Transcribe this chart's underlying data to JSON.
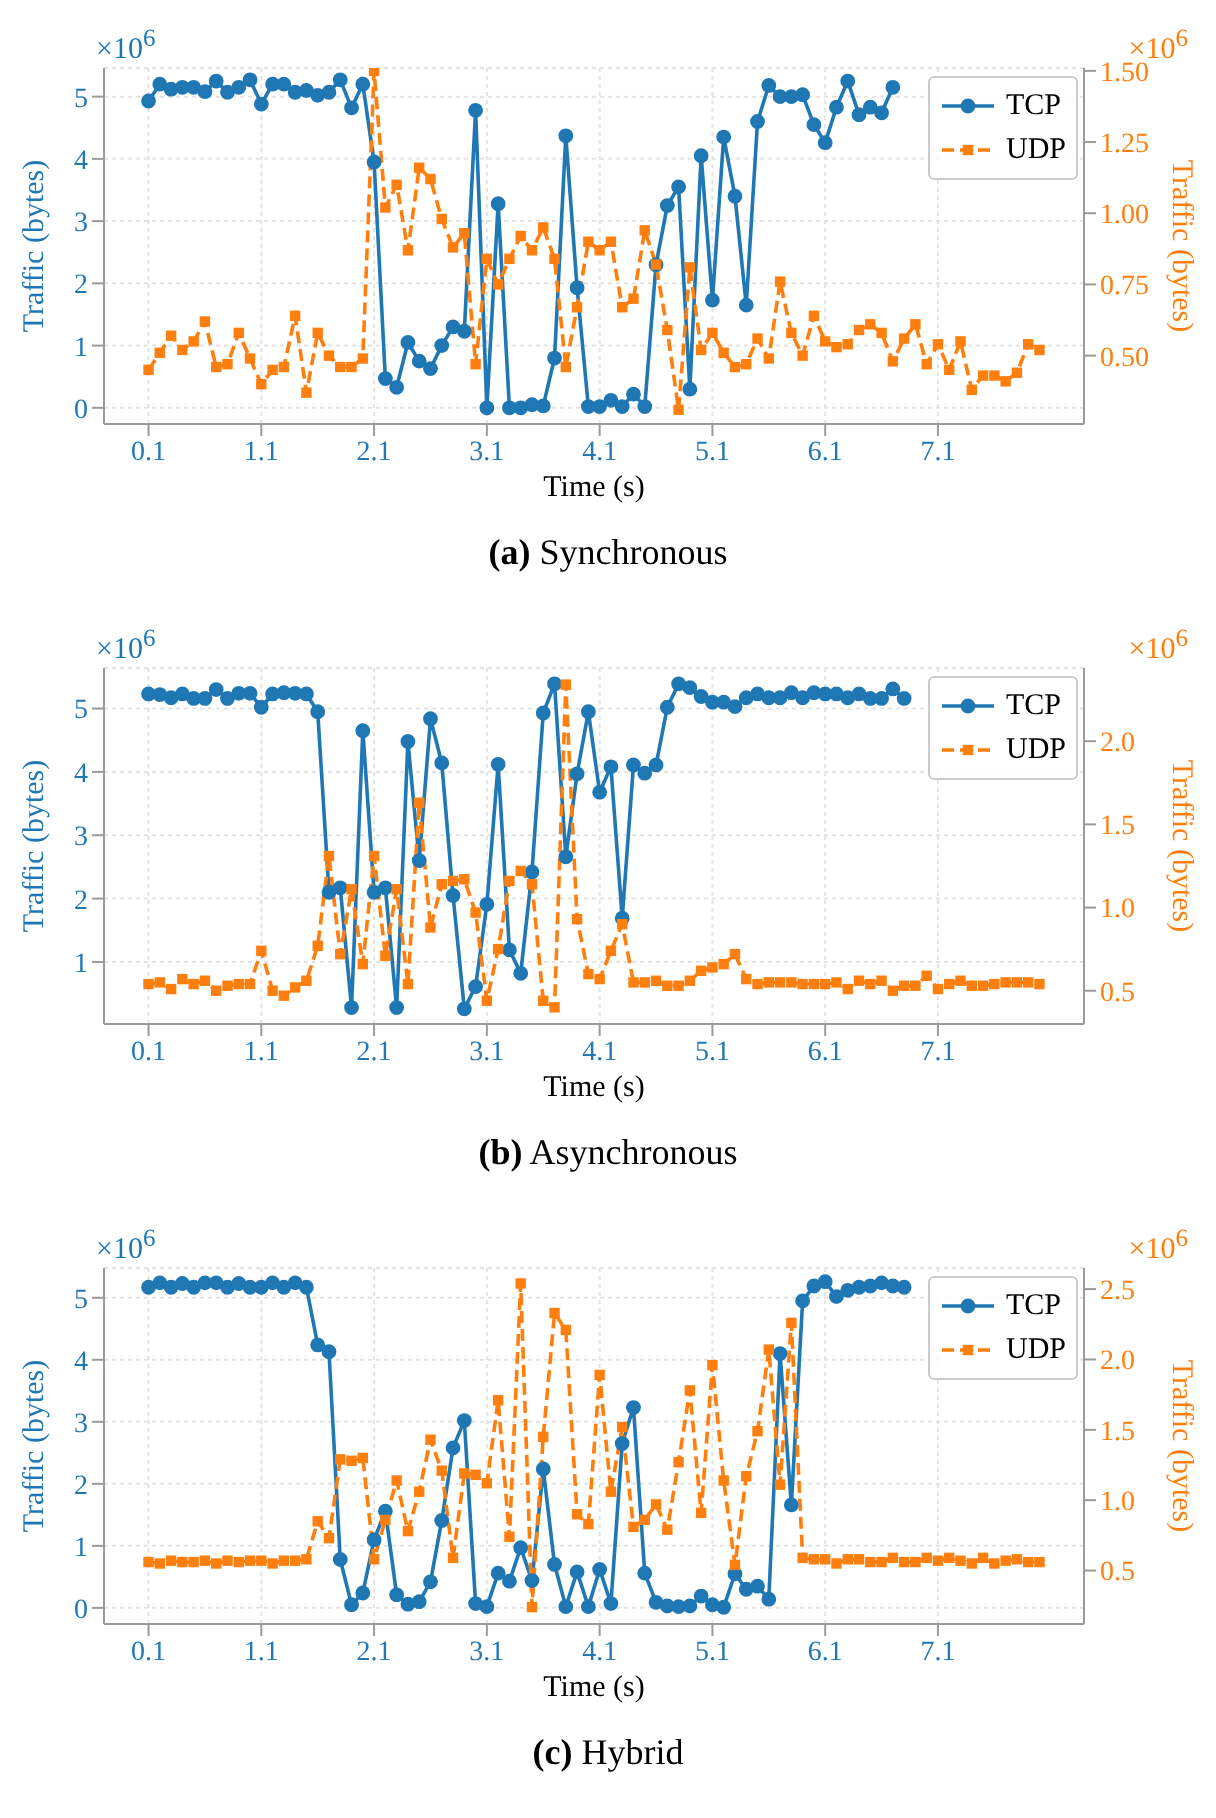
{
  "chart_data": [
    {
      "type": "line",
      "title": "(a) Synchronous",
      "xlabel": "Time (s)",
      "ylabel": "Traffic (bytes)",
      "y2label": "Traffic (bytes)",
      "annotations": [
        "×10$^{6}$",
        "×10$^{6}$"
      ],
      "grid": true,
      "legend": "top right",
      "x": [
        0.1,
        0.2,
        0.3,
        0.4,
        0.5,
        0.6,
        0.7,
        0.8,
        0.9,
        1.0,
        1.1,
        1.2,
        1.3,
        1.4,
        1.5,
        1.6,
        1.7,
        1.8,
        1.9,
        2.0,
        2.1,
        2.2,
        2.3,
        2.4,
        2.5,
        2.6,
        2.7,
        2.8,
        2.9,
        3.0,
        3.1,
        3.2,
        3.3,
        3.4,
        3.5,
        3.6,
        3.7,
        3.8,
        3.9,
        4.0,
        4.1,
        4.2,
        4.3,
        4.4,
        4.5,
        4.6,
        4.7,
        4.8,
        4.9,
        5.0,
        5.1,
        5.2,
        5.3,
        5.4,
        5.5,
        5.6,
        5.7,
        5.8,
        5.9,
        6.0,
        6.1,
        6.2,
        6.3,
        6.4,
        6.5,
        6.6,
        6.7,
        6.8,
        6.9,
        7.0,
        7.1,
        7.2,
        7.3,
        7.4,
        7.5,
        7.6,
        7.7,
        7.8,
        7.9,
        8.0
      ],
      "xlim": [
        -0.295,
        8.395
      ],
      "xticks": [
        0.1,
        1.1,
        2.1,
        3.1,
        4.1,
        5.1,
        6.1,
        7.1
      ],
      "ylim": [
        -0.26,
        5.46
      ],
      "yticks": [
        0,
        1,
        2,
        3,
        4,
        5
      ],
      "y2lim": [
        0.26,
        1.51
      ],
      "y2ticks": [
        {
          "value": 0.5,
          "label": "0.50"
        },
        {
          "value": 0.75,
          "label": "0.75"
        },
        {
          "value": 1.0,
          "label": "1.00"
        },
        {
          "value": 1.25,
          "label": "1.25"
        },
        {
          "value": 1.5,
          "label": "1.50"
        }
      ],
      "series": [
        {
          "name": "TCP",
          "color": "#1f77b4",
          "marker": "circle",
          "line_style": "solid",
          "values": [
            4.93,
            5.2,
            5.12,
            5.15,
            5.15,
            5.08,
            5.25,
            5.07,
            5.15,
            5.27,
            4.88,
            5.2,
            5.2,
            5.07,
            5.1,
            5.02,
            5.07,
            5.27,
            4.82,
            5.2,
            3.95,
            0.47,
            0.33,
            1.05,
            0.75,
            0.63,
            1.0,
            1.3,
            1.23,
            4.78,
            0.0,
            3.28,
            0.0,
            0.0,
            0.05,
            0.03,
            0.8,
            4.37,
            1.93,
            0.02,
            0.02,
            0.12,
            0.02,
            0.22,
            0.02,
            2.3,
            3.25,
            3.55,
            0.3,
            4.05,
            1.73,
            4.35,
            3.4,
            1.65,
            4.6,
            5.18,
            5.0,
            5.0,
            5.03,
            4.55,
            4.26,
            4.83,
            5.25,
            4.71,
            4.83,
            4.74,
            5.15,
            null,
            null,
            null,
            null,
            null,
            null,
            null,
            null,
            null,
            null,
            null,
            null,
            null
          ]
        },
        {
          "name": "UDP",
          "color": "#ff7f0e",
          "marker": "square",
          "line_style": "dashed",
          "axis": "y2",
          "values": [
            0.45,
            0.51,
            0.57,
            0.52,
            0.55,
            0.62,
            0.46,
            0.47,
            0.58,
            0.49,
            0.4,
            0.45,
            0.46,
            0.64,
            0.37,
            0.58,
            0.5,
            0.46,
            0.46,
            0.49,
            1.5,
            1.02,
            1.1,
            0.87,
            1.16,
            1.12,
            0.98,
            0.88,
            0.93,
            0.47,
            0.84,
            0.75,
            0.84,
            0.92,
            0.87,
            0.95,
            0.84,
            0.46,
            0.67,
            0.9,
            0.87,
            0.9,
            0.67,
            0.7,
            0.94,
            0.82,
            0.59,
            0.31,
            0.81,
            0.52,
            0.58,
            0.51,
            0.46,
            0.47,
            0.56,
            0.49,
            0.76,
            0.58,
            0.5,
            0.64,
            0.55,
            0.53,
            0.54,
            0.59,
            0.61,
            0.58,
            0.48,
            0.56,
            0.61,
            0.47,
            0.54,
            0.45,
            0.55,
            0.38,
            0.43,
            0.43,
            0.41,
            0.44,
            0.54,
            0.52
          ]
        }
      ]
    },
    {
      "type": "line",
      "title": "(b) Asynchronous",
      "xlabel": "Time (s)",
      "ylabel": "Traffic (bytes)",
      "y2label": "Traffic (bytes)",
      "annotations": [
        "×10$^{6}$",
        "×10$^{6}$"
      ],
      "grid": true,
      "legend": "top right",
      "x": [
        0.1,
        0.2,
        0.3,
        0.4,
        0.5,
        0.6,
        0.7,
        0.8,
        0.9,
        1.0,
        1.1,
        1.2,
        1.3,
        1.4,
        1.5,
        1.6,
        1.7,
        1.8,
        1.9,
        2.0,
        2.1,
        2.2,
        2.3,
        2.4,
        2.5,
        2.6,
        2.7,
        2.8,
        2.9,
        3.0,
        3.1,
        3.2,
        3.3,
        3.4,
        3.5,
        3.6,
        3.7,
        3.8,
        3.9,
        4.0,
        4.1,
        4.2,
        4.3,
        4.4,
        4.5,
        4.6,
        4.7,
        4.8,
        4.9,
        5.0,
        5.1,
        5.2,
        5.3,
        5.4,
        5.5,
        5.6,
        5.7,
        5.8,
        5.9,
        6.0,
        6.1,
        6.2,
        6.3,
        6.4,
        6.5,
        6.6,
        6.7,
        6.8,
        6.9,
        7.0,
        7.1,
        7.2,
        7.3,
        7.4,
        7.5,
        7.6,
        7.7,
        7.8,
        7.9,
        8.0
      ],
      "xlim": [
        -0.295,
        8.395
      ],
      "xticks": [
        0.1,
        1.1,
        2.1,
        3.1,
        4.1,
        5.1,
        6.1,
        7.1
      ],
      "ylim": [
        0.02,
        5.64
      ],
      "yticks": [
        1,
        2,
        3,
        4,
        5
      ],
      "y2lim": [
        0.3,
        2.44
      ],
      "y2ticks": [
        {
          "value": 0.5,
          "label": "0.5"
        },
        {
          "value": 1.0,
          "label": "1.0"
        },
        {
          "value": 1.5,
          "label": "1.5"
        },
        {
          "value": 2.0,
          "label": "2.0"
        }
      ],
      "series": [
        {
          "name": "TCP",
          "color": "#1f77b4",
          "marker": "circle",
          "line_style": "solid",
          "values": [
            5.23,
            5.22,
            5.17,
            5.23,
            5.16,
            5.16,
            5.3,
            5.16,
            5.24,
            5.24,
            5.02,
            5.23,
            5.25,
            5.24,
            5.23,
            4.95,
            2.1,
            2.17,
            0.28,
            4.65,
            2.1,
            2.17,
            0.28,
            4.48,
            2.6,
            4.84,
            4.14,
            2.05,
            0.26,
            0.61,
            1.91,
            4.12,
            1.19,
            0.82,
            2.42,
            4.93,
            5.39,
            2.66,
            3.97,
            4.95,
            3.68,
            4.08,
            1.69,
            4.11,
            3.98,
            4.11,
            5.02,
            5.39,
            5.33,
            5.19,
            5.1,
            5.1,
            5.03,
            5.17,
            5.23,
            5.17,
            5.17,
            5.25,
            5.17,
            5.25,
            5.23,
            5.23,
            5.17,
            5.23,
            5.16,
            5.16,
            5.31,
            5.16,
            null,
            null,
            null,
            null,
            null,
            null,
            null,
            null,
            null,
            null,
            null,
            null
          ]
        },
        {
          "name": "UDP",
          "color": "#ff7f0e",
          "marker": "square",
          "line_style": "dashed",
          "axis": "y2",
          "values": [
            0.54,
            0.55,
            0.51,
            0.57,
            0.54,
            0.56,
            0.5,
            0.53,
            0.54,
            0.54,
            0.74,
            0.5,
            0.47,
            0.52,
            0.56,
            0.77,
            1.31,
            0.72,
            1.11,
            0.66,
            1.31,
            0.71,
            1.11,
            0.54,
            1.63,
            0.88,
            1.14,
            1.16,
            1.17,
            0.97,
            0.44,
            0.75,
            1.16,
            1.22,
            1.14,
            0.44,
            0.4,
            2.34,
            0.93,
            0.6,
            0.57,
            0.74,
            0.9,
            0.55,
            0.55,
            0.56,
            0.53,
            0.53,
            0.56,
            0.62,
            0.64,
            0.66,
            0.72,
            0.57,
            0.54,
            0.55,
            0.55,
            0.55,
            0.54,
            0.54,
            0.54,
            0.55,
            0.51,
            0.56,
            0.54,
            0.56,
            0.5,
            0.53,
            0.53,
            0.59,
            0.51,
            0.54,
            0.56,
            0.53,
            0.53,
            0.54,
            0.55,
            0.55,
            0.55,
            0.54
          ]
        }
      ]
    },
    {
      "type": "line",
      "title": "(c) Hybrid",
      "xlabel": "Time (s)",
      "ylabel": "Traffic (bytes)",
      "y2label": "Traffic (bytes)",
      "annotations": [
        "×10$^{6}$",
        "×10$^{6}$"
      ],
      "grid": true,
      "legend": "top right",
      "x": [
        0.1,
        0.2,
        0.3,
        0.4,
        0.5,
        0.6,
        0.7,
        0.8,
        0.9,
        1.0,
        1.1,
        1.2,
        1.3,
        1.4,
        1.5,
        1.6,
        1.7,
        1.8,
        1.9,
        2.0,
        2.1,
        2.2,
        2.3,
        2.4,
        2.5,
        2.6,
        2.7,
        2.8,
        2.9,
        3.0,
        3.1,
        3.2,
        3.3,
        3.4,
        3.5,
        3.6,
        3.7,
        3.8,
        3.9,
        4.0,
        4.1,
        4.2,
        4.3,
        4.4,
        4.5,
        4.6,
        4.7,
        4.8,
        4.9,
        5.0,
        5.1,
        5.2,
        5.3,
        5.4,
        5.5,
        5.6,
        5.7,
        5.8,
        5.9,
        6.0,
        6.1,
        6.2,
        6.3,
        6.4,
        6.5,
        6.6,
        6.7,
        6.8,
        6.9,
        7.0,
        7.1,
        7.2,
        7.3,
        7.4,
        7.5,
        7.6,
        7.7,
        7.8,
        7.9,
        8.0
      ],
      "xlim": [
        -0.295,
        8.395
      ],
      "xticks": [
        0.1,
        1.1,
        2.1,
        3.1,
        4.1,
        5.1,
        6.1,
        7.1
      ],
      "ylim": [
        -0.26,
        5.48
      ],
      "yticks": [
        0,
        1,
        2,
        3,
        4,
        5
      ],
      "y2lim": [
        0.12,
        2.65
      ],
      "y2ticks": [
        {
          "value": 0.5,
          "label": "0.5"
        },
        {
          "value": 1.0,
          "label": "1.0"
        },
        {
          "value": 1.5,
          "label": "1.5"
        },
        {
          "value": 2.0,
          "label": "2.0"
        },
        {
          "value": 2.5,
          "label": "2.5"
        }
      ],
      "series": [
        {
          "name": "TCP",
          "color": "#1f77b4",
          "marker": "circle",
          "line_style": "solid",
          "values": [
            5.17,
            5.24,
            5.17,
            5.23,
            5.17,
            5.24,
            5.24,
            5.17,
            5.23,
            5.17,
            5.17,
            5.24,
            5.17,
            5.24,
            5.17,
            4.24,
            4.13,
            0.78,
            0.05,
            0.24,
            1.1,
            1.56,
            0.21,
            0.06,
            0.1,
            0.42,
            1.41,
            2.58,
            3.02,
            0.07,
            0.02,
            0.56,
            0.43,
            0.97,
            0.44,
            2.24,
            0.7,
            0.02,
            0.58,
            0.02,
            0.62,
            0.07,
            2.65,
            3.23,
            0.56,
            0.09,
            0.03,
            0.02,
            0.03,
            0.19,
            0.05,
            0.01,
            0.55,
            0.3,
            0.35,
            0.14,
            4.1,
            1.66,
            4.95,
            5.19,
            5.26,
            5.02,
            5.12,
            5.17,
            5.19,
            5.24,
            5.19,
            5.17,
            null,
            null,
            null,
            null,
            null,
            null,
            null,
            null,
            null,
            null,
            null,
            null
          ]
        },
        {
          "name": "UDP",
          "color": "#ff7f0e",
          "marker": "square",
          "line_style": "dashed",
          "axis": "y2",
          "values": [
            0.56,
            0.55,
            0.57,
            0.56,
            0.56,
            0.57,
            0.55,
            0.57,
            0.56,
            0.57,
            0.57,
            0.55,
            0.57,
            0.57,
            0.58,
            0.85,
            0.73,
            1.29,
            1.28,
            1.3,
            0.58,
            0.86,
            1.14,
            0.78,
            1.06,
            1.43,
            1.21,
            0.59,
            1.19,
            1.18,
            1.12,
            1.71,
            0.74,
            2.54,
            0.24,
            1.45,
            2.33,
            2.21,
            0.9,
            0.83,
            1.89,
            1.06,
            1.52,
            0.81,
            0.86,
            0.97,
            0.79,
            1.27,
            1.78,
            0.91,
            1.96,
            1.14,
            0.54,
            1.17,
            1.49,
            2.07,
            1.11,
            2.26,
            0.59,
            0.58,
            0.58,
            0.55,
            0.58,
            0.58,
            0.56,
            0.56,
            0.59,
            0.56,
            0.56,
            0.59,
            0.57,
            0.59,
            0.57,
            0.55,
            0.59,
            0.55,
            0.57,
            0.58,
            0.56,
            0.56
          ]
        }
      ]
    }
  ]
}
